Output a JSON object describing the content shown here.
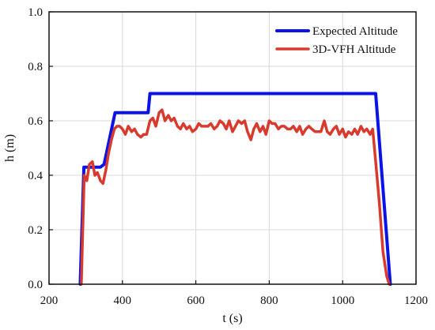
{
  "chart_data": {
    "type": "line",
    "title": "",
    "xlabel": "t (s)",
    "ylabel": "h (m)",
    "xlim": [
      200,
      1200
    ],
    "ylim": [
      0.0,
      1.0
    ],
    "xticks": [
      200,
      400,
      600,
      800,
      1000,
      1200
    ],
    "xtick_labels": [
      "200",
      "400",
      "600",
      "800",
      "1000",
      "1200"
    ],
    "yticks": [
      0.0,
      0.2,
      0.4,
      0.6,
      0.8,
      1.0
    ],
    "ytick_labels": [
      "0.0",
      "0.2",
      "0.4",
      "0.6",
      "0.8",
      "1.0"
    ],
    "grid": true,
    "legend_position": "top-right",
    "series": [
      {
        "name": "Expected Altitude",
        "color": "#0a14e6",
        "x": [
          285,
          295,
          300,
          340,
          350,
          380,
          385,
          470,
          475,
          1080,
          1090,
          1130
        ],
        "y": [
          0.0,
          0.43,
          0.43,
          0.43,
          0.44,
          0.63,
          0.63,
          0.63,
          0.7,
          0.7,
          0.7,
          0.0
        ]
      },
      {
        "name": "3D-VFH Altitude",
        "color": "#d93a2e",
        "x": [
          288,
          296,
          303,
          310,
          318,
          325,
          332,
          340,
          347,
          355,
          362,
          370,
          378,
          385,
          392,
          400,
          408,
          416,
          425,
          433,
          441,
          450,
          458,
          466,
          475,
          483,
          491,
          500,
          508,
          516,
          525,
          533,
          541,
          550,
          558,
          566,
          575,
          583,
          591,
          600,
          608,
          616,
          625,
          633,
          641,
          650,
          658,
          666,
          675,
          683,
          691,
          700,
          708,
          716,
          725,
          733,
          741,
          750,
          758,
          766,
          775,
          783,
          791,
          800,
          808,
          816,
          825,
          833,
          841,
          850,
          858,
          866,
          875,
          883,
          891,
          900,
          908,
          916,
          925,
          933,
          941,
          950,
          958,
          966,
          975,
          983,
          991,
          1000,
          1008,
          1016,
          1025,
          1033,
          1041,
          1050,
          1058,
          1066,
          1075,
          1082,
          1090,
          1100,
          1110,
          1120,
          1127
        ],
        "y": [
          0.0,
          0.4,
          0.38,
          0.44,
          0.45,
          0.4,
          0.41,
          0.38,
          0.37,
          0.42,
          0.48,
          0.53,
          0.57,
          0.58,
          0.58,
          0.57,
          0.55,
          0.58,
          0.56,
          0.57,
          0.55,
          0.54,
          0.55,
          0.55,
          0.6,
          0.61,
          0.58,
          0.63,
          0.64,
          0.6,
          0.62,
          0.6,
          0.61,
          0.58,
          0.57,
          0.59,
          0.57,
          0.58,
          0.56,
          0.57,
          0.59,
          0.58,
          0.58,
          0.58,
          0.59,
          0.57,
          0.58,
          0.6,
          0.59,
          0.57,
          0.6,
          0.56,
          0.58,
          0.6,
          0.59,
          0.6,
          0.56,
          0.53,
          0.57,
          0.59,
          0.56,
          0.58,
          0.55,
          0.6,
          0.59,
          0.59,
          0.57,
          0.58,
          0.58,
          0.57,
          0.57,
          0.58,
          0.56,
          0.58,
          0.55,
          0.57,
          0.58,
          0.57,
          0.56,
          0.56,
          0.56,
          0.6,
          0.56,
          0.55,
          0.57,
          0.58,
          0.55,
          0.57,
          0.54,
          0.56,
          0.55,
          0.57,
          0.55,
          0.58,
          0.56,
          0.57,
          0.55,
          0.57,
          0.45,
          0.3,
          0.12,
          0.03,
          0.0
        ]
      }
    ]
  }
}
